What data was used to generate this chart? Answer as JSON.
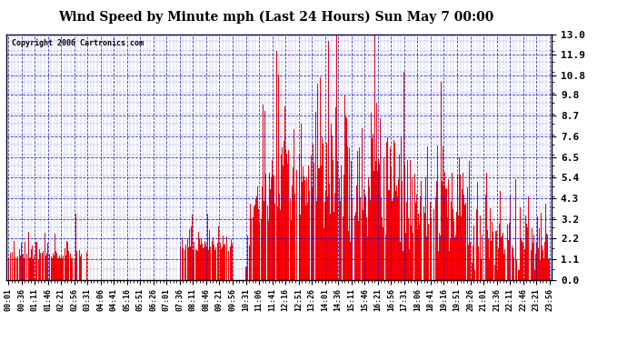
{
  "title": "Wind Speed by Minute mph (Last 24 Hours) Sun May 7 00:00",
  "copyright": "Copyright 2006 Cartronics.com",
  "background_color": "#ffffff",
  "plot_bg_color": "#ffffff",
  "bar_color": "#ff0000",
  "grid_color": "#0000cc",
  "yticks": [
    0.0,
    1.1,
    2.2,
    3.2,
    4.3,
    5.4,
    6.5,
    7.6,
    8.7,
    9.8,
    10.8,
    11.9,
    13.0
  ],
  "ylim": [
    0.0,
    13.0
  ],
  "num_minutes": 1440,
  "seed": 42,
  "xtick_labels": [
    "00:01",
    "00:36",
    "01:11",
    "01:46",
    "02:21",
    "02:56",
    "03:31",
    "04:06",
    "04:41",
    "05:16",
    "05:51",
    "06:26",
    "07:01",
    "07:36",
    "08:11",
    "08:46",
    "09:21",
    "09:56",
    "10:31",
    "11:06",
    "11:41",
    "12:16",
    "12:51",
    "13:26",
    "14:01",
    "14:36",
    "15:11",
    "15:46",
    "16:21",
    "16:56",
    "17:31",
    "18:06",
    "18:41",
    "19:16",
    "19:51",
    "20:26",
    "21:01",
    "21:36",
    "22:11",
    "22:46",
    "23:21",
    "23:56"
  ],
  "figsize": [
    6.9,
    3.75
  ],
  "dpi": 100
}
